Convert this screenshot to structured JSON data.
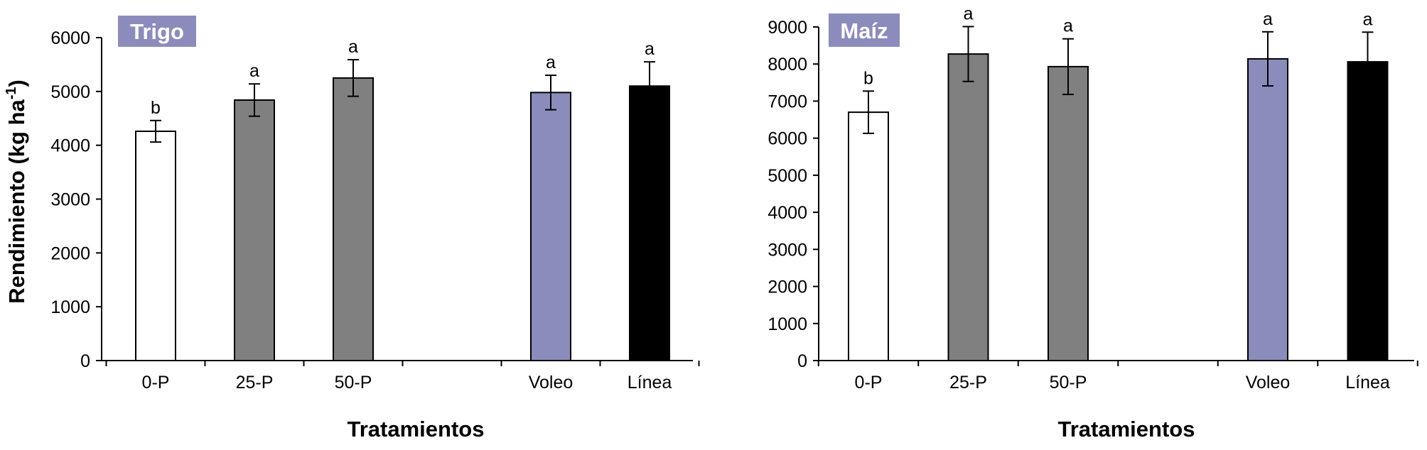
{
  "ylabel": "Rendimiento (kg ha-1)",
  "colors": {
    "treatment_0P": "#ffffff",
    "treatment_P": "#808080",
    "voleo": "#8c8cbc",
    "linea": "#000000",
    "title_box": "#8c8cbc"
  },
  "chart_data": [
    {
      "type": "bar",
      "title": "Trigo",
      "xlabel": "Tratamientos",
      "ylabel": "Rendimiento (kg ha-1)",
      "ylim": [
        0,
        6000
      ],
      "yticks": [
        0,
        1000,
        2000,
        3000,
        4000,
        5000,
        6000
      ],
      "grid": false,
      "categories": [
        "0-P",
        "25-P",
        "50-P",
        "",
        "Voleo",
        "Línea"
      ],
      "values": [
        4260,
        4840,
        5250,
        null,
        4980,
        5100
      ],
      "errors": [
        200,
        300,
        340,
        null,
        320,
        450
      ],
      "letters": [
        "b",
        "a",
        "a",
        "",
        "a",
        "a"
      ],
      "bar_colors": [
        "#ffffff",
        "#808080",
        "#808080",
        null,
        "#8c8cbc",
        "#000000"
      ]
    },
    {
      "type": "bar",
      "title": "Maíz",
      "xlabel": "Tratamientos",
      "ylabel": "",
      "ylim": [
        0,
        9000
      ],
      "yticks": [
        0,
        1000,
        2000,
        3000,
        4000,
        5000,
        6000,
        7000,
        8000,
        9000
      ],
      "grid": false,
      "categories": [
        "0-P",
        "25-P",
        "50-P",
        "",
        "Voleo",
        "Línea"
      ],
      "values": [
        6700,
        8270,
        7930,
        null,
        8140,
        8060
      ],
      "errors": [
        570,
        740,
        750,
        null,
        730,
        800
      ],
      "letters": [
        "b",
        "a",
        "a",
        "",
        "a",
        "a"
      ],
      "bar_colors": [
        "#ffffff",
        "#808080",
        "#808080",
        null,
        "#8c8cbc",
        "#000000"
      ]
    }
  ]
}
